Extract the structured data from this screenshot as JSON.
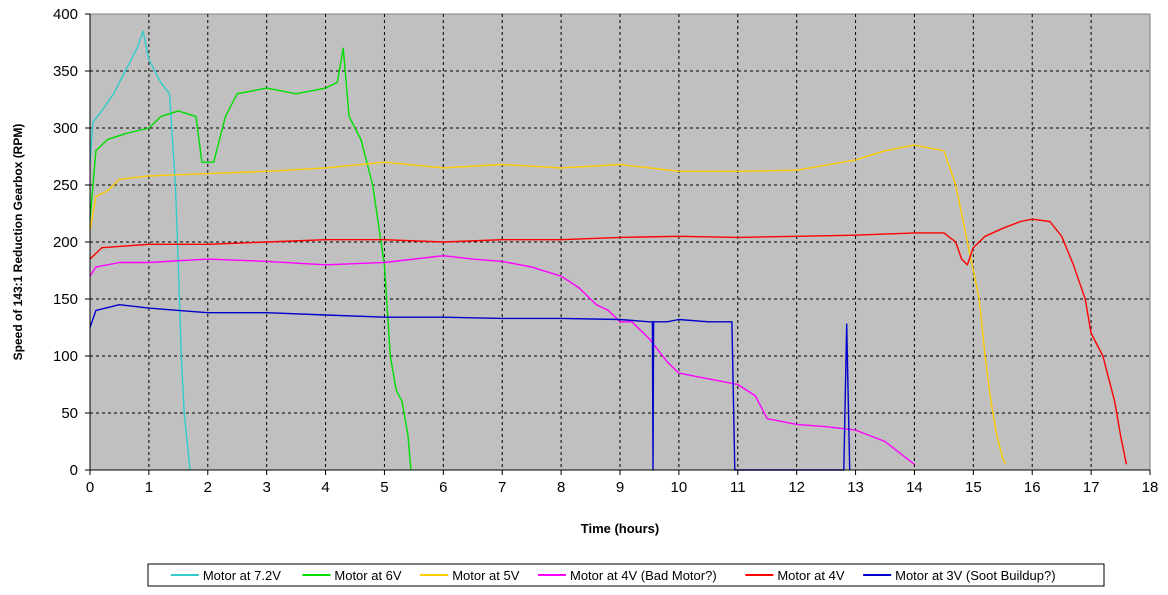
{
  "chart_data": {
    "type": "line",
    "title": "",
    "xlabel": "Time (hours)",
    "ylabel": "Speed of 143:1 Reduction Gearbox (RPM)",
    "xlim": [
      0,
      18
    ],
    "ylim": [
      0,
      400
    ],
    "x_ticks": [
      0,
      1,
      2,
      3,
      4,
      5,
      6,
      7,
      8,
      9,
      10,
      11,
      12,
      13,
      14,
      15,
      16,
      17,
      18
    ],
    "y_ticks": [
      0,
      50,
      100,
      150,
      200,
      250,
      300,
      350,
      400
    ],
    "grid": true,
    "legend_position": "bottom",
    "plot_background": "#c0c0c0",
    "series": [
      {
        "name": "Motor at 7.2V",
        "color": "#33cccc",
        "points": [
          [
            0,
            270
          ],
          [
            0.05,
            305
          ],
          [
            0.2,
            315
          ],
          [
            0.4,
            330
          ],
          [
            0.6,
            350
          ],
          [
            0.8,
            370
          ],
          [
            0.9,
            385
          ],
          [
            1.0,
            360
          ],
          [
            1.2,
            340
          ],
          [
            1.35,
            330
          ],
          [
            1.45,
            250
          ],
          [
            1.5,
            180
          ],
          [
            1.55,
            100
          ],
          [
            1.6,
            50
          ],
          [
            1.7,
            0
          ]
        ]
      },
      {
        "name": "Motor at 6V",
        "color": "#00dd00",
        "points": [
          [
            0,
            220
          ],
          [
            0.1,
            280
          ],
          [
            0.3,
            290
          ],
          [
            0.6,
            295
          ],
          [
            1.0,
            300
          ],
          [
            1.2,
            310
          ],
          [
            1.5,
            315
          ],
          [
            1.8,
            310
          ],
          [
            1.9,
            270
          ],
          [
            2.1,
            270
          ],
          [
            2.3,
            310
          ],
          [
            2.5,
            330
          ],
          [
            3.0,
            335
          ],
          [
            3.5,
            330
          ],
          [
            4.0,
            335
          ],
          [
            4.2,
            340
          ],
          [
            4.3,
            370
          ],
          [
            4.4,
            310
          ],
          [
            4.6,
            290
          ],
          [
            4.8,
            250
          ],
          [
            5.0,
            180
          ],
          [
            5.1,
            100
          ],
          [
            5.2,
            70
          ],
          [
            5.3,
            60
          ],
          [
            5.4,
            30
          ],
          [
            5.45,
            0
          ]
        ]
      },
      {
        "name": "Motor at 5V",
        "color": "#ffcc00",
        "points": [
          [
            0,
            210
          ],
          [
            0.1,
            240
          ],
          [
            0.3,
            245
          ],
          [
            0.5,
            255
          ],
          [
            1.0,
            258
          ],
          [
            2.0,
            260
          ],
          [
            3.0,
            262
          ],
          [
            4.0,
            265
          ],
          [
            5.0,
            270
          ],
          [
            6.0,
            265
          ],
          [
            7.0,
            268
          ],
          [
            8.0,
            265
          ],
          [
            9.0,
            268
          ],
          [
            10.0,
            262
          ],
          [
            11.0,
            262
          ],
          [
            12.0,
            263
          ],
          [
            13.0,
            272
          ],
          [
            13.5,
            280
          ],
          [
            14.0,
            285
          ],
          [
            14.3,
            282
          ],
          [
            14.5,
            280
          ],
          [
            14.7,
            250
          ],
          [
            14.9,
            200
          ],
          [
            15.1,
            150
          ],
          [
            15.2,
            100
          ],
          [
            15.3,
            60
          ],
          [
            15.4,
            30
          ],
          [
            15.5,
            10
          ],
          [
            15.55,
            5
          ]
        ]
      },
      {
        "name": "Motor at 4V (Bad Motor?)",
        "color": "#ff00ff",
        "points": [
          [
            0,
            170
          ],
          [
            0.1,
            178
          ],
          [
            0.5,
            182
          ],
          [
            1.0,
            182
          ],
          [
            2.0,
            185
          ],
          [
            3.0,
            183
          ],
          [
            4.0,
            180
          ],
          [
            5.0,
            182
          ],
          [
            6.0,
            188
          ],
          [
            6.5,
            185
          ],
          [
            7.0,
            183
          ],
          [
            7.5,
            178
          ],
          [
            8.0,
            170
          ],
          [
            8.3,
            160
          ],
          [
            8.6,
            145
          ],
          [
            8.8,
            140
          ],
          [
            9.0,
            130
          ],
          [
            9.2,
            130
          ],
          [
            9.5,
            115
          ],
          [
            9.8,
            95
          ],
          [
            10.0,
            85
          ],
          [
            10.5,
            80
          ],
          [
            11.0,
            75
          ],
          [
            11.3,
            65
          ],
          [
            11.5,
            45
          ],
          [
            12.0,
            40
          ],
          [
            12.5,
            38
          ],
          [
            13.0,
            35
          ],
          [
            13.5,
            25
          ],
          [
            14.0,
            5
          ]
        ]
      },
      {
        "name": "Motor at 4V",
        "color": "#ff0000",
        "points": [
          [
            0,
            185
          ],
          [
            0.2,
            195
          ],
          [
            1.0,
            198
          ],
          [
            2.0,
            198
          ],
          [
            3.0,
            200
          ],
          [
            4.0,
            202
          ],
          [
            5.0,
            202
          ],
          [
            6.0,
            200
          ],
          [
            7.0,
            202
          ],
          [
            8.0,
            202
          ],
          [
            9.0,
            204
          ],
          [
            10.0,
            205
          ],
          [
            11.0,
            204
          ],
          [
            12.0,
            205
          ],
          [
            13.0,
            206
          ],
          [
            14.0,
            208
          ],
          [
            14.5,
            208
          ],
          [
            14.7,
            200
          ],
          [
            14.8,
            185
          ],
          [
            14.9,
            180
          ],
          [
            15.0,
            195
          ],
          [
            15.2,
            205
          ],
          [
            15.5,
            212
          ],
          [
            15.8,
            218
          ],
          [
            16.0,
            220
          ],
          [
            16.3,
            218
          ],
          [
            16.5,
            205
          ],
          [
            16.7,
            180
          ],
          [
            16.9,
            150
          ],
          [
            17.0,
            120
          ],
          [
            17.2,
            100
          ],
          [
            17.4,
            60
          ],
          [
            17.5,
            30
          ],
          [
            17.6,
            5
          ]
        ]
      },
      {
        "name": "Motor at 3V (Soot Buildup?)",
        "color": "#0000cc",
        "points": [
          [
            0,
            125
          ],
          [
            0.1,
            140
          ],
          [
            0.5,
            145
          ],
          [
            1.0,
            142
          ],
          [
            1.5,
            140
          ],
          [
            2.0,
            138
          ],
          [
            3.0,
            138
          ],
          [
            4.0,
            136
          ],
          [
            5.0,
            134
          ],
          [
            6.0,
            134
          ],
          [
            7.0,
            133
          ],
          [
            8.0,
            133
          ],
          [
            9.0,
            132
          ],
          [
            9.5,
            130
          ],
          [
            9.55,
            130
          ],
          [
            9.56,
            0
          ],
          [
            9.57,
            130
          ],
          [
            9.8,
            130
          ],
          [
            10.0,
            132
          ],
          [
            10.5,
            130
          ],
          [
            10.9,
            130
          ],
          [
            10.95,
            0
          ],
          [
            12.8,
            0
          ],
          [
            12.85,
            128
          ],
          [
            12.9,
            0
          ]
        ]
      }
    ]
  }
}
